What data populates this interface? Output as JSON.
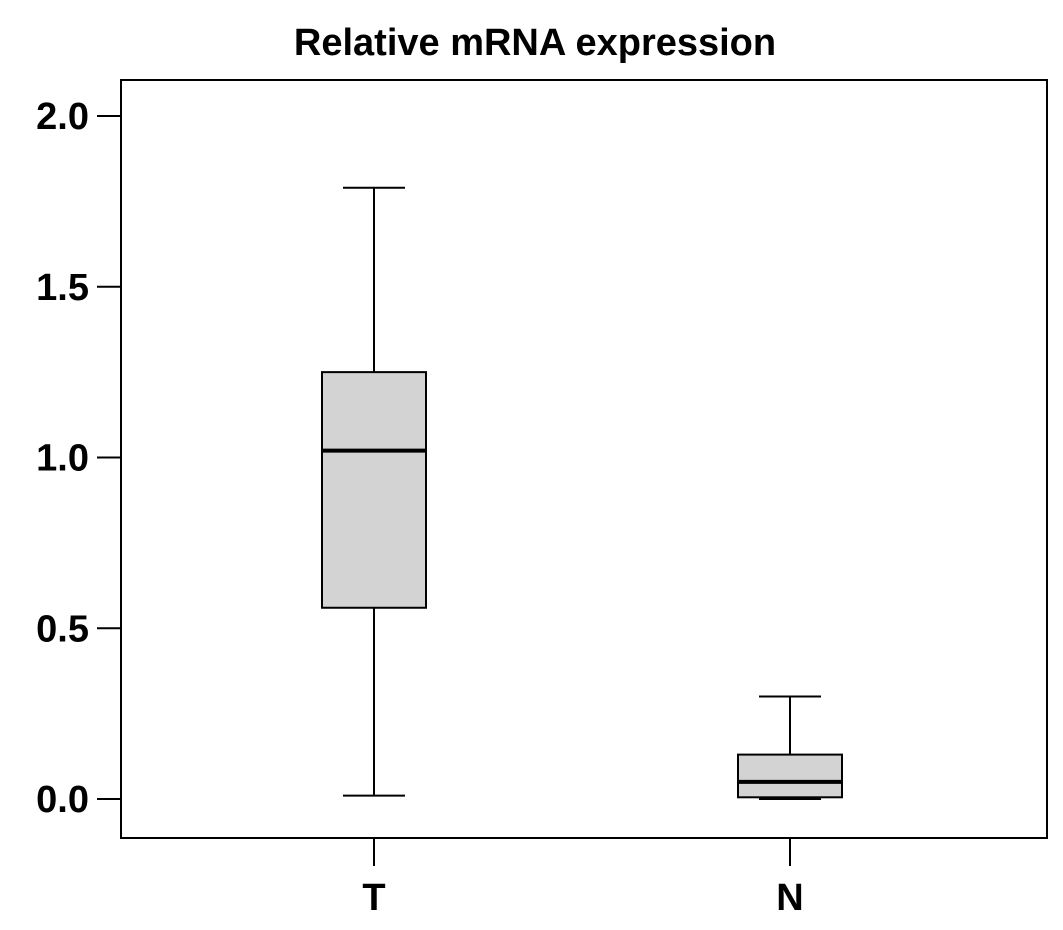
{
  "chart_data": {
    "type": "box",
    "title": "Relative mRNA expression",
    "xlabel": "",
    "ylabel": "",
    "ylim": [
      -0.11,
      2.1
    ],
    "yticks": [
      "0.0",
      "0.5",
      "1.0",
      "1.5",
      "2.0"
    ],
    "ytick_values": [
      0.0,
      0.5,
      1.0,
      1.5,
      2.0
    ],
    "categories": [
      "T",
      "N"
    ],
    "boxes": [
      {
        "category": "T",
        "whisker_low": 0.01,
        "q1": 0.56,
        "median": 1.02,
        "q3": 1.25,
        "whisker_high": 1.79
      },
      {
        "category": "N",
        "whisker_low": 0.0,
        "q1": 0.005,
        "median": 0.05,
        "q3": 0.13,
        "whisker_high": 0.3
      }
    ],
    "box_fill": "#d3d3d3",
    "line_color": "#000000",
    "grid": false
  }
}
